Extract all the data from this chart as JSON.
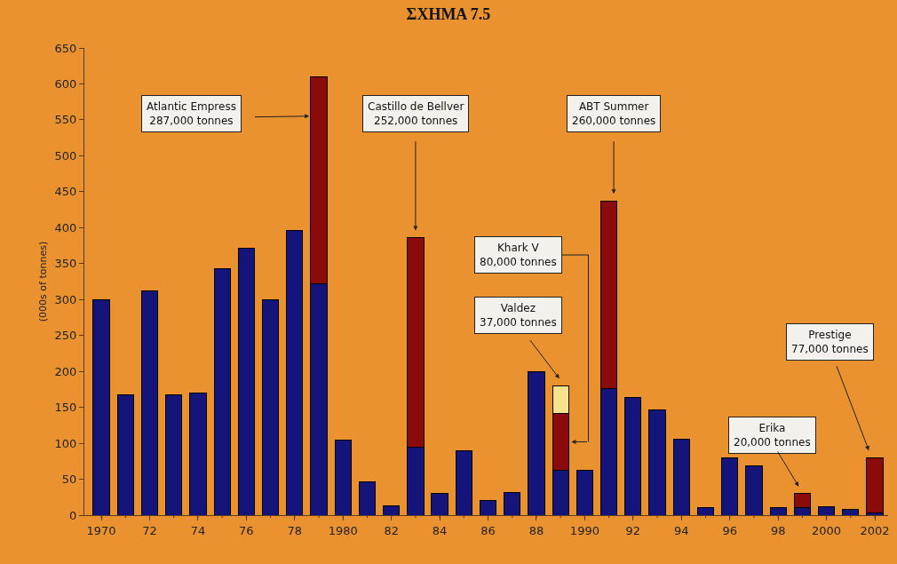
{
  "chart_data": {
    "type": "bar",
    "stacked": true,
    "title": "ΣΧΗΜΑ 7.5",
    "ylabel": "(000s of tonnes)",
    "categories": [
      "1970",
      null,
      "72",
      null,
      "74",
      null,
      "76",
      null,
      "78",
      null,
      "1980",
      null,
      "82",
      null,
      "84",
      null,
      "86",
      null,
      "88",
      null,
      "1990",
      null,
      "92",
      null,
      "94",
      null,
      "96",
      null,
      "98",
      null,
      "2000",
      null,
      "2002"
    ],
    "series": [
      {
        "color": "#14147a",
        "values": [
          300,
          167,
          312,
          167,
          170,
          343,
          371,
          300,
          396,
          322,
          105,
          46,
          13,
          95,
          30,
          90,
          20,
          32,
          200,
          63,
          62,
          176,
          164,
          146,
          106,
          10,
          80,
          68,
          11,
          10,
          12,
          8,
          3
        ]
      },
      {
        "color": "#8b0b0b",
        "values": [
          null,
          null,
          null,
          null,
          null,
          null,
          null,
          null,
          null,
          288,
          null,
          null,
          null,
          291,
          null,
          null,
          null,
          null,
          null,
          78,
          null,
          261,
          null,
          null,
          null,
          null,
          null,
          null,
          null,
          20,
          null,
          null,
          77
        ]
      },
      {
        "color": "#f7e38e",
        "values": [
          null,
          null,
          null,
          null,
          null,
          null,
          null,
          null,
          null,
          null,
          null,
          null,
          null,
          null,
          null,
          null,
          null,
          null,
          null,
          39,
          null,
          null,
          null,
          null,
          null,
          null,
          null,
          null,
          null,
          null,
          null,
          null,
          null
        ]
      }
    ],
    "ylim": [
      0,
      650
    ],
    "yticks": [
      0,
      50,
      100,
      150,
      200,
      250,
      300,
      350,
      400,
      450,
      500,
      550,
      600,
      650
    ],
    "grid": false,
    "annotations": [
      "Atlantic Empress\n287,000 tonnes",
      "Castillo de Bellver\n252,000 tonnes",
      "ABT Summer\n260,000 tonnes",
      "Khark V\n80,000 tonnes",
      "Valdez\n37,000 tonnes",
      "Erika\n20,000 tonnes",
      "Prestige\n77,000 tonnes"
    ]
  }
}
